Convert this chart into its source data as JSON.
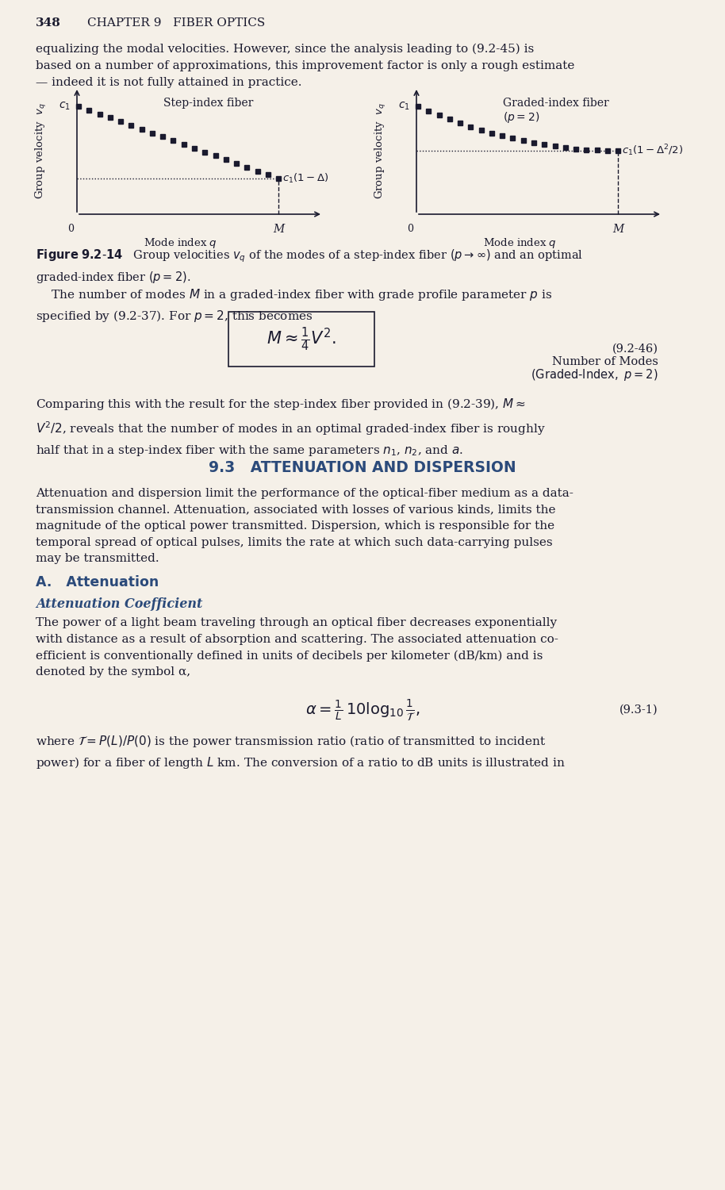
{
  "page_number": "348",
  "chapter_header": "CHAPTER 9   FIBER OPTICS",
  "bg_color": "#f5f0e8",
  "text_color": "#1a1a2e",
  "blue_color": "#2b4a7a",
  "intro_text": "equalizing the modal velocities. However, since the analysis leading to (9.2-45) is based on a number of approximations, this improvement factor is only a rough estimate — indeed it is not fully attained in practice.",
  "fig_left_title": "Step-index fiber",
  "fig_right_title": "Graded-index fiber\n(p = 2)",
  "fig_ylabel": "Group velocity  v_q",
  "fig_xlabel": "Mode index q",
  "fig_caption": "Figure 9.2-14   Group velocities v_q of the modes of a step-index fiber (p → ∞) and an optimal graded-index fiber (p = 2).",
  "section_number": "9.3",
  "section_title": "ATTENUATION AND DISPERSION",
  "para1": "Attenuation and dispersion limit the performance of the optical-fiber medium as a data-transmission channel. Attenuation, associated with losses of various kinds, limits the magnitude of the optical power transmitted. Dispersion, which is responsible for the temporal spread of optical pulses, limits the rate at which such data-carrying pulses may be transmitted.",
  "subsec_A": "A.   Attenuation",
  "subsec_A_italic": "Attenuation Coefficient",
  "para2": "The power of a light beam traveling through an optical fiber decreases exponentially with distance as a result of absorption and scattering. The associated attenuation co-efficient is conventionally defined in units of decibels per kilometer (dB/km) and is denoted by the symbol α,",
  "eq_931_label": "(9.3-1)",
  "para3": "where ȷ = P(L)/P(0) is the power transmission ratio (ratio of transmitted to incident power) for a fiber of length L km. The conversion of a ratio to dB units is illustrated in",
  "eq_246_label": "(9.2-46)",
  "eq_246_side": "Number of Modes\n(Graded-Index, p = 2)",
  "para_modes": "The number of modes M in a graded-index fiber with grade profile parameter p is specified by (9.2-37). For p = 2, this becomes",
  "para_compare": "Comparing this with the result for the step-index fiber provided in (9.2-39), M ≈ V²/2, reveals that the number of modes in an optimal graded-index fiber is roughly half that in a step-index fiber with the same parameters n₁, n₂, and a."
}
